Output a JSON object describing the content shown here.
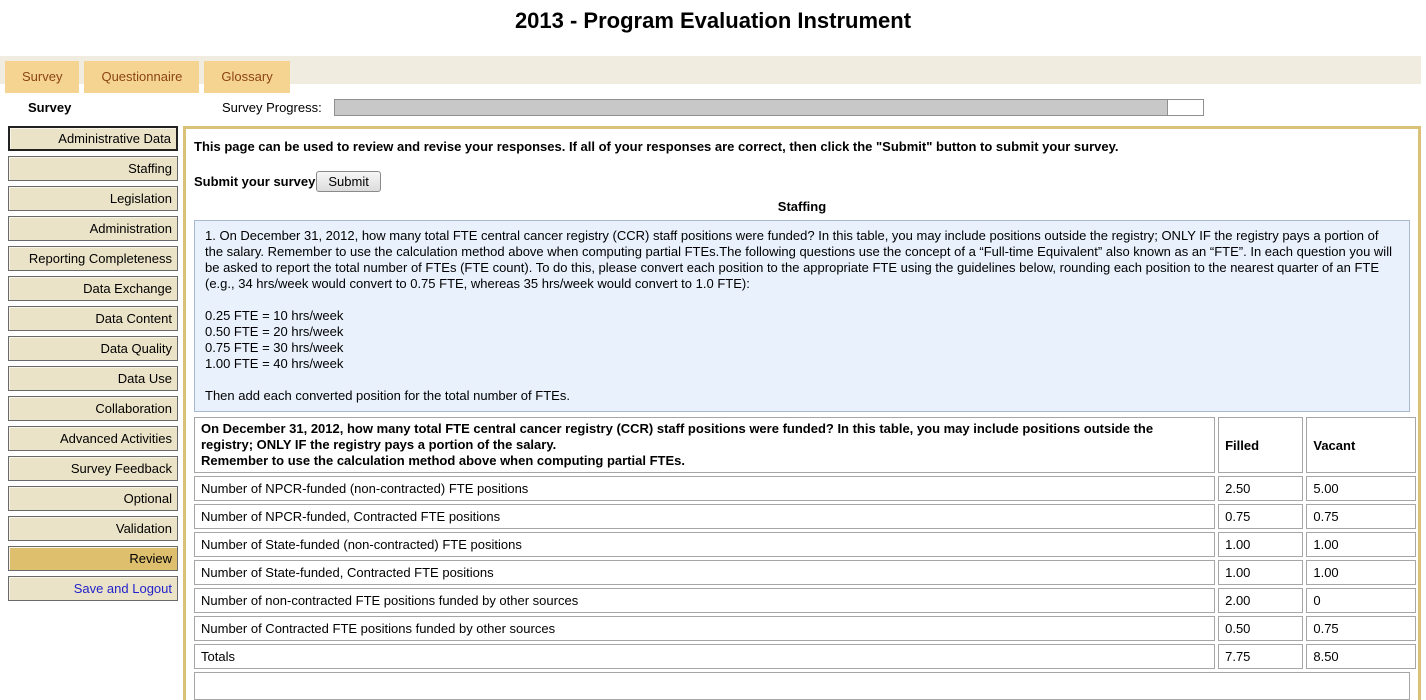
{
  "page": {
    "title": "2013 - Program Evaluation Instrument"
  },
  "tabs": [
    {
      "label": "Survey"
    },
    {
      "label": "Questionnaire"
    },
    {
      "label": "Glossary"
    }
  ],
  "subheader": {
    "section_label": "Survey",
    "progress_label": "Survey Progress:",
    "progress_percent": 96
  },
  "sidebar": {
    "items": [
      {
        "label": "Administrative Data",
        "focus": true
      },
      {
        "label": "Staffing"
      },
      {
        "label": "Legislation"
      },
      {
        "label": "Administration"
      },
      {
        "label": "Reporting Completeness"
      },
      {
        "label": "Data Exchange"
      },
      {
        "label": "Data Content"
      },
      {
        "label": "Data Quality"
      },
      {
        "label": "Data Use"
      },
      {
        "label": "Collaboration"
      },
      {
        "label": "Advanced Activities"
      },
      {
        "label": "Survey Feedback"
      },
      {
        "label": "Optional"
      },
      {
        "label": "Validation"
      },
      {
        "label": "Review",
        "active": true
      },
      {
        "label": "Save and Logout",
        "link": true
      }
    ]
  },
  "main": {
    "intro_text": "This page can be used to review and revise your responses. If all of your responses are correct, then click the \"Submit\" button to submit your survey.",
    "submit_prompt": "Submit your survey",
    "submit_button_label": "Submit",
    "section_title": "Staffing",
    "info_box": {
      "paragraph": "1. On December 31, 2012, how many total FTE central cancer registry (CCR) staff positions were funded? In this table, you may include positions outside the registry; ONLY IF the registry pays a portion of the salary. Remember to use the calculation method above when computing partial FTEs.The following questions use the concept of a “Full-time Equivalent” also known as an “FTE”. In each question you will be asked to report the total number of FTEs (FTE count). To do this, please convert each position to the appropriate FTE using the guidelines below, rounding each position to the nearest quarter of an FTE (e.g., 34 hrs/week would convert to 0.75 FTE, whereas 35 hrs/week would convert to 1.0 FTE):",
      "fte_lines": [
        {
          "text": "0.25 FTE = 10 hrs/week"
        },
        {
          "text": "0.50 FTE = 20 hrs/week"
        },
        {
          "text": "0.75 FTE = 30 hrs/week"
        },
        {
          "text": "1.00 FTE = 40 hrs/week"
        }
      ],
      "closing": "Then add each converted position for the total number of FTEs."
    },
    "table": {
      "question_line1": "On December 31, 2012, how many total FTE central cancer registry (CCR) staff positions were funded? In this table, you may include positions outside the registry; ONLY IF the registry pays a portion of the salary.",
      "question_line2": "Remember to use the calculation method above when computing partial FTEs.",
      "columns": [
        "Filled",
        "Vacant"
      ],
      "rows": [
        {
          "label": "Number of NPCR-funded (non-contracted) FTE positions",
          "filled": "2.50",
          "vacant": "5.00"
        },
        {
          "label": "Number of NPCR-funded, Contracted FTE positions",
          "filled": "0.75",
          "vacant": "0.75"
        },
        {
          "label": "Number of State-funded (non-contracted) FTE positions",
          "filled": "1.00",
          "vacant": "1.00"
        },
        {
          "label": "Number of State-funded, Contracted FTE positions",
          "filled": "1.00",
          "vacant": "1.00"
        },
        {
          "label": "Number of non-contracted FTE positions funded by other sources",
          "filled": "2.00",
          "vacant": "0"
        },
        {
          "label": "Number of Contracted FTE positions funded by other sources",
          "filled": "0.50",
          "vacant": "0.75"
        },
        {
          "label": "Totals",
          "filled": "7.75",
          "vacant": "8.50"
        }
      ]
    }
  },
  "colors": {
    "tab_background": "#f5d491",
    "tab_text": "#8b4513",
    "panel_border": "#d9c178",
    "sidebar_item_background": "#ebe3c8",
    "active_item_background": "#ddbf6e",
    "link_blue": "#2222cc",
    "info_box_background": "#e9f1fc",
    "progress_fill_gray": "#c8c8c8"
  }
}
